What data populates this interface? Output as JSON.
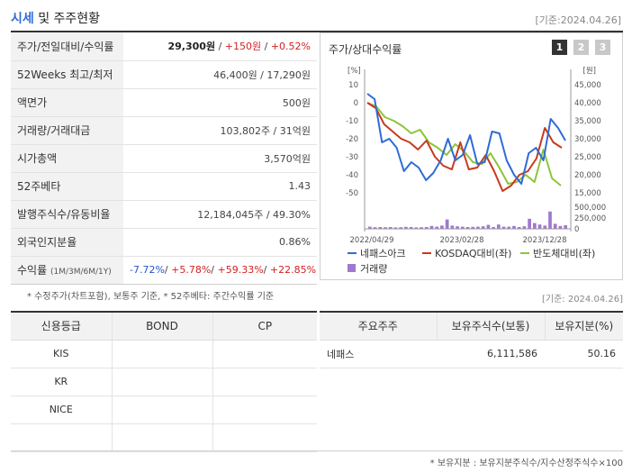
{
  "header": {
    "title_accent": "시세",
    "title_rest": " 및 주주현황",
    "date": "[기준:2024.04.26]"
  },
  "quote_table": {
    "rows": [
      {
        "label": "주가/전일대비/수익률",
        "price": "29,300원",
        "sep1": " / ",
        "change": "+150원",
        "sep2": " / ",
        "rate": "+0.52%"
      },
      {
        "label": "52Weeks 최고/최저",
        "value": "46,400원 / 17,290원"
      },
      {
        "label": "액면가",
        "value": "500원"
      },
      {
        "label": "거래량/거래대금",
        "value": "103,802주 / 31억원"
      },
      {
        "label": "시가총액",
        "value": "3,570억원"
      },
      {
        "label": "52주베타",
        "value": "1.43"
      },
      {
        "label": "발행주식수/유동비율",
        "value": "12,184,045주 / 49.30%"
      },
      {
        "label": "외국인지분율",
        "value": "0.86%"
      },
      {
        "label": "수익률",
        "label_small": "(1M/3M/6M/1Y)",
        "r1": "-7.72%",
        "r2": "+5.78%",
        "r3": "+59.33%",
        "r4": "+22.85%",
        "sep": "/ "
      }
    ]
  },
  "chart_panel": {
    "title": "주가/상대수익률",
    "pages": [
      "1",
      "2",
      "3"
    ]
  },
  "chart_data": {
    "type": "line",
    "left_axis_unit": "[%]",
    "right_axis_unit": "[원]",
    "left_ticks": [
      "10",
      "0",
      "-10",
      "-20",
      "-30",
      "-40",
      "-50"
    ],
    "right_ticks": [
      "45,000",
      "40,000",
      "35,000",
      "30,000",
      "25,000",
      "20,000",
      "15,000"
    ],
    "volume_ticks": [
      "500,000",
      "250,000",
      "0"
    ],
    "x_ticks": [
      "2022/04/29",
      "2023/02/28",
      "2023/12/28"
    ],
    "ylim_left": [
      -50,
      10
    ],
    "ylim_volume": [
      0,
      600000
    ],
    "series": [
      {
        "name": "네패스아크",
        "color": "#2f6bd6",
        "values": [
          5,
          2,
          -22,
          -20,
          -25,
          -38,
          -33,
          -36,
          -43,
          -39,
          -32,
          -20,
          -32,
          -29,
          -18,
          -34,
          -33,
          -16,
          -17,
          -32,
          -40,
          -45,
          -28,
          -25,
          -32,
          -9,
          -14,
          -21
        ]
      },
      {
        "name": "KOSDAQ대비(좌)",
        "color": "#c8381f",
        "values": [
          0,
          -3,
          -12,
          -16,
          -20,
          -22,
          -26,
          -21,
          -30,
          -35,
          -37,
          -22,
          -37,
          -36,
          -29,
          -38,
          -49,
          -46,
          -40,
          -38,
          -31,
          -14,
          -22,
          -25
        ]
      },
      {
        "name": "반도체대비(좌)",
        "color": "#8ec437",
        "values": [
          0,
          -2,
          -8,
          -10,
          -13,
          -17,
          -15,
          -22,
          -25,
          -29,
          -23,
          -27,
          -33,
          -34,
          -28,
          -36,
          -45,
          -44,
          -40,
          -44,
          -26,
          -42,
          -46
        ]
      }
    ],
    "volume_series": {
      "name": "거래량",
      "color": "#a078d0",
      "values": [
        60000,
        45000,
        50000,
        45000,
        50000,
        40000,
        45000,
        55000,
        50000,
        40000,
        45000,
        50000,
        80000,
        60000,
        90000,
        260000,
        90000,
        70000,
        60000,
        50000,
        55000,
        60000,
        70000,
        110000,
        50000,
        120000,
        60000,
        60000,
        80000,
        50000,
        70000,
        280000,
        160000,
        120000,
        90000,
        480000,
        140000,
        80000,
        100000
      ]
    }
  },
  "notes": "* 수정주가(차트포함), 보통주 기준, * 52주베타: 주간수익률 기준",
  "date_mid": "[기준: 2024.04.26]",
  "credit_table": {
    "headers": [
      "신용등급",
      "BOND",
      "CP"
    ],
    "rows": [
      [
        "KIS",
        "",
        ""
      ],
      [
        "KR",
        "",
        ""
      ],
      [
        "NICE",
        "",
        ""
      ],
      [
        "",
        "",
        ""
      ]
    ]
  },
  "holders_table": {
    "headers": [
      "주요주주",
      "보유주식수(보통)",
      "보유지분(%)"
    ],
    "rows": [
      [
        "네패스",
        "6,111,586",
        "50.16"
      ]
    ]
  },
  "footnote": "* 보유지분 : 보유지분주식수/지수산정주식수×100"
}
